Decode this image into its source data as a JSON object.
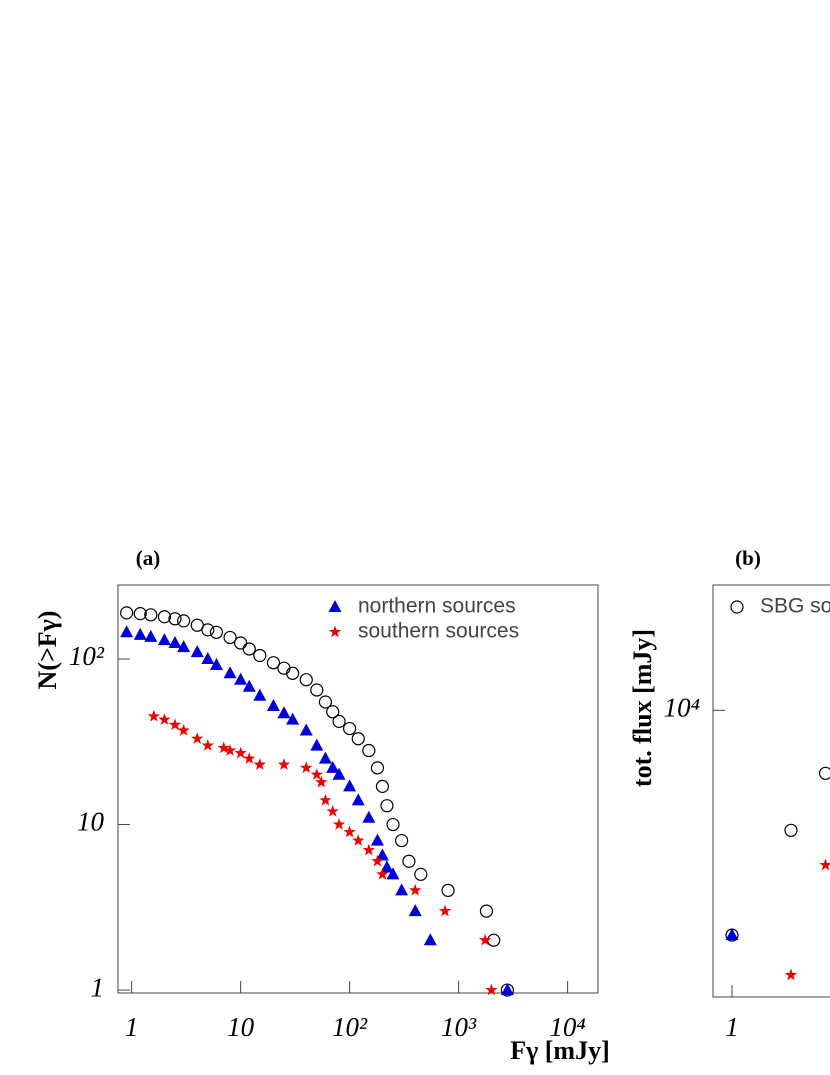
{
  "chart_data": [
    {
      "type": "scatter",
      "label": "(a)",
      "x_label": "Fγ [mJy]",
      "y_label": "N(>Fγ)",
      "xscale": "log",
      "yscale": "log",
      "legend": "upper right",
      "xlim": [
        0.75,
        19000
      ],
      "ylim": [
        0.96,
        280
      ],
      "xticks": [
        1,
        10,
        {
          "value": 100,
          "label": "10²"
        },
        {
          "value": 1000,
          "label": "10³"
        },
        {
          "value": 10000,
          "label": "10⁴"
        }
      ],
      "yticks": [
        1,
        10,
        {
          "value": 100,
          "label": "10²"
        }
      ],
      "series": [
        {
          "marker": "circle",
          "color": "#000000",
          "x": [
            0.9,
            1.2,
            1.5,
            2,
            2.5,
            3,
            4,
            5,
            6,
            8,
            10,
            12,
            15,
            20,
            25,
            30,
            40,
            50,
            60,
            70,
            80,
            100,
            120,
            150,
            180,
            200,
            220,
            250,
            300,
            350,
            450,
            800,
            1800,
            2100,
            2800
          ],
          "values": [
            190,
            188,
            185,
            180,
            175,
            170,
            160,
            150,
            145,
            135,
            125,
            115,
            105,
            95,
            88,
            82,
            75,
            65,
            55,
            48,
            42,
            38,
            33,
            28,
            22,
            17,
            13,
            10,
            8,
            6,
            5,
            4,
            3,
            2,
            1
          ]
        },
        {
          "name": "northern sources",
          "marker": "triangle",
          "color": "#0000dd",
          "x": [
            0.9,
            1.2,
            1.5,
            2,
            2.5,
            3,
            4,
            5,
            6,
            8,
            10,
            12,
            15,
            20,
            25,
            30,
            40,
            50,
            60,
            70,
            80,
            100,
            120,
            150,
            180,
            200,
            220,
            250,
            300,
            400,
            550,
            2800
          ],
          "values": [
            145,
            140,
            136,
            130,
            125,
            118,
            110,
            100,
            92,
            82,
            75,
            68,
            60,
            52,
            47,
            43,
            37,
            30,
            25,
            22,
            20,
            17,
            14,
            11,
            8,
            6.5,
            5.5,
            5,
            4,
            3,
            2,
            1
          ]
        },
        {
          "name": "southern sources",
          "marker": "star",
          "color": "#ee0000",
          "x": [
            1.6,
            2,
            2.5,
            3,
            4,
            5,
            7,
            8,
            10,
            12,
            15,
            25,
            40,
            50,
            55,
            60,
            70,
            80,
            100,
            120,
            150,
            180,
            200,
            400,
            750,
            1750,
            2000
          ],
          "values": [
            45,
            43,
            40,
            37,
            33,
            30,
            29,
            28,
            27,
            25,
            23,
            23,
            22,
            20,
            18,
            14,
            12,
            10,
            9,
            8,
            7,
            6,
            5,
            4,
            3,
            2,
            1
          ]
        }
      ]
    },
    {
      "type": "scatter",
      "label": "(b)",
      "y_label": "tot. flux [mJy]",
      "xscale": "log",
      "yscale": "log",
      "legend": "upper left",
      "xlim": [
        0.8,
        10
      ],
      "ylim": [
        3010,
        16900
      ],
      "xticks": [
        1
      ],
      "yticks": [
        {
          "value": 10000,
          "label": "10⁴"
        }
      ],
      "series": [
        {
          "name": "SBG so",
          "marker": "circle",
          "color": "#000000",
          "x": [
            1,
            2,
            3
          ],
          "values": [
            3900,
            6050,
            7680
          ]
        },
        {
          "marker": "triangle",
          "color": "#0000dd",
          "x": [
            1
          ],
          "values": [
            3900
          ]
        },
        {
          "marker": "star",
          "color": "#ee0000",
          "x": [
            2,
            3
          ],
          "values": [
            3300,
            5230
          ]
        }
      ]
    }
  ]
}
